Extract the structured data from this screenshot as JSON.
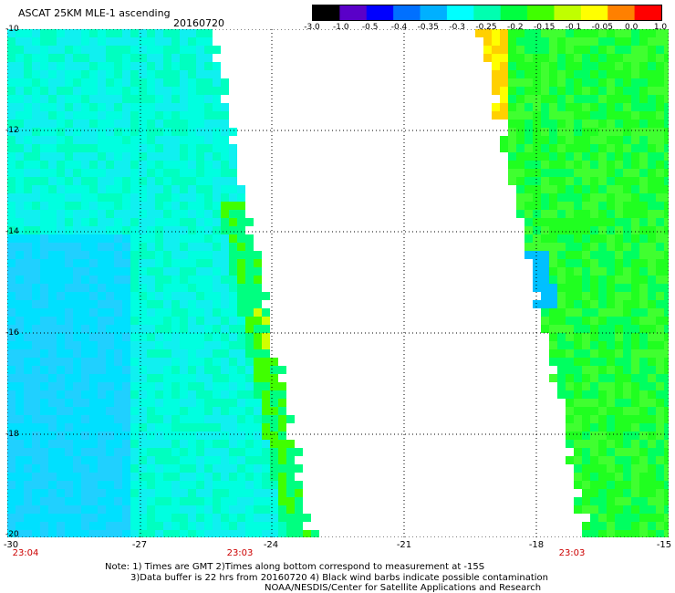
{
  "header": {
    "title": "ASCAT 25KM MLE-1 ascending",
    "date": "20160720"
  },
  "colorbar": {
    "labels": [
      "-3.0",
      "-1.0",
      "-0.5",
      "-0.4",
      "-0.35",
      "-0.3",
      "-0.25",
      "-0.2",
      "-0.15",
      "-0.1",
      "-0.05",
      "0.0",
      "1.0"
    ],
    "colors": [
      "#000000",
      "#5a00c8",
      "#0000ff",
      "#0070ff",
      "#00b0ff",
      "#00ffff",
      "#00ffb0",
      "#00ff40",
      "#40ff00",
      "#c0ff00",
      "#ffff00",
      "#ff8000",
      "#ff0000"
    ]
  },
  "axes": {
    "y_ticks": [
      "-10",
      "-12",
      "-14",
      "-16",
      "-18",
      "-20"
    ],
    "x_ticks": [
      "-30",
      "-27",
      "-24",
      "-21",
      "-18",
      "-15"
    ]
  },
  "times": [
    "23:04",
    "23:03",
    "23:03"
  ],
  "notes": [
    "Note: 1) Times are GMT 2)Times along bottom correspond to measurement at -15S",
    "3)Data buffer is 22 hrs from 20160720 4) Black wind barbs indicate possible contamination",
    "NOAA/NESDIS/Center for Satellite Applications and Research"
  ]
}
